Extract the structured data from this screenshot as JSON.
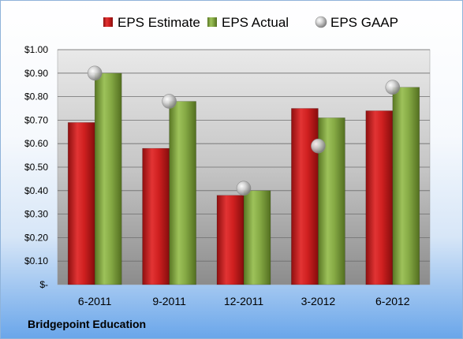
{
  "footer": {
    "company": "Bridgepoint Education"
  },
  "chart_data": {
    "type": "bar",
    "categories": [
      "6-2011",
      "9-2011",
      "12-2011",
      "3-2012",
      "6-2012"
    ],
    "series": [
      {
        "name": "EPS Estimate",
        "kind": "bar",
        "color": "#cc1f1f",
        "values": [
          0.69,
          0.58,
          0.38,
          0.75,
          0.74
        ]
      },
      {
        "name": "EPS Actual",
        "kind": "bar",
        "color": "#84a840",
        "values": [
          0.9,
          0.78,
          0.4,
          0.71,
          0.84
        ]
      },
      {
        "name": "EPS GAAP",
        "kind": "marker",
        "color": "#b0b0b0",
        "values": [
          0.9,
          0.78,
          0.41,
          0.59,
          0.84
        ]
      }
    ],
    "ylim": [
      0,
      1.0
    ],
    "yticks": [
      "$-",
      "$0.10",
      "$0.20",
      "$0.30",
      "$0.40",
      "$0.50",
      "$0.60",
      "$0.70",
      "$0.80",
      "$0.90",
      "$1.00"
    ],
    "legend_position": "top",
    "grid": true
  }
}
